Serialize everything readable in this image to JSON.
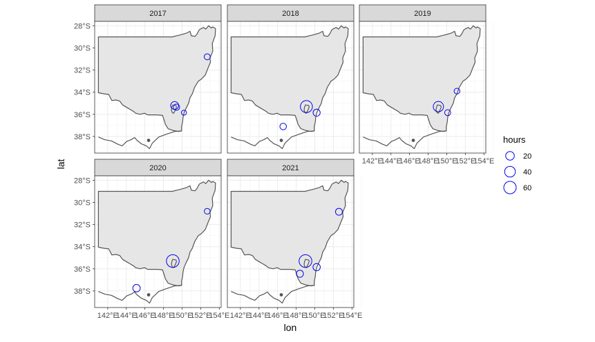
{
  "chart_data": {
    "type": "scatter",
    "facet_by": "year",
    "xlabel": "lon",
    "ylabel": "lat",
    "xlim": [
      140.6,
      154.2
    ],
    "ylim": [
      -39.5,
      -27.6
    ],
    "x_ticks": [
      142,
      144,
      146,
      148,
      150,
      152,
      154
    ],
    "x_tick_labels": [
      "142°E",
      "144°E",
      "146°E",
      "148°E",
      "150°E",
      "152°E",
      "154°E"
    ],
    "y_ticks": [
      -28,
      -30,
      -32,
      -34,
      -36,
      -38
    ],
    "y_tick_labels": [
      "28°S",
      "30°S",
      "32°S",
      "34°S",
      "36°S",
      "38°S"
    ],
    "grid": true,
    "point_color": "#0000ee",
    "point_shape": "open-circle",
    "map_fill": "#e6e6e6",
    "map_stroke": "#555555",
    "size_legend": {
      "title": "hours",
      "placement": "right",
      "breaks": [
        20,
        40,
        60
      ],
      "labels": [
        "20",
        "40",
        "60"
      ]
    },
    "panels": [
      {
        "label": "2017",
        "points": [
          {
            "lon": 152.7,
            "lat": -30.8,
            "hours": 5
          },
          {
            "lon": 149.2,
            "lat": -35.2,
            "hours": 15
          },
          {
            "lon": 149.4,
            "lat": -35.35,
            "hours": 6
          },
          {
            "lon": 150.2,
            "lat": -35.85,
            "hours": 2
          }
        ]
      },
      {
        "label": "2018",
        "points": [
          {
            "lon": 149.1,
            "lat": -35.3,
            "hours": 55
          },
          {
            "lon": 150.2,
            "lat": -35.85,
            "hours": 10
          },
          {
            "lon": 146.6,
            "lat": -37.1,
            "hours": 7
          }
        ]
      },
      {
        "label": "2019",
        "points": [
          {
            "lon": 151.1,
            "lat": -33.9,
            "hours": 4
          },
          {
            "lon": 149.1,
            "lat": -35.3,
            "hours": 35
          },
          {
            "lon": 150.1,
            "lat": -35.85,
            "hours": 5
          }
        ]
      },
      {
        "label": "2020",
        "points": [
          {
            "lon": 152.7,
            "lat": -30.8,
            "hours": 4
          },
          {
            "lon": 149.0,
            "lat": -35.3,
            "hours": 65
          },
          {
            "lon": 145.1,
            "lat": -37.75,
            "hours": 12
          }
        ]
      },
      {
        "label": "2021",
        "points": [
          {
            "lon": 152.6,
            "lat": -30.85,
            "hours": 9
          },
          {
            "lon": 149.0,
            "lat": -35.3,
            "hours": 65
          },
          {
            "lon": 150.2,
            "lat": -35.85,
            "hours": 11
          },
          {
            "lon": 148.4,
            "lat": -36.45,
            "hours": 10
          }
        ]
      }
    ]
  }
}
